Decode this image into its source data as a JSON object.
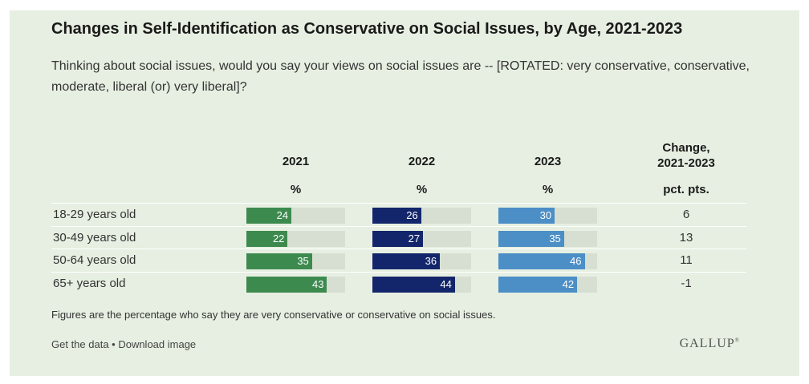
{
  "chart_data": {
    "type": "bar",
    "title": "Changes in Self-Identification as Conservative on Social Issues, by Age, 2021-2023",
    "subtitle": "Thinking about social issues, would you say your views on social issues are -- [ROTATED: very conservative, conservative, moderate, liberal (or) very liberal]?",
    "columns": [
      {
        "year": "2021",
        "unit": "%",
        "color": "#3d8a4f"
      },
      {
        "year": "2022",
        "unit": "%",
        "color": "#13266b"
      },
      {
        "year": "2023",
        "unit": "%",
        "color": "#4c8ec6"
      }
    ],
    "change_header": "Change,\n2021-2023",
    "change_unit": "pct. pts.",
    "categories": [
      "18-29 years old",
      "30-49 years old",
      "50-64 years old",
      "65+ years old"
    ],
    "series": [
      {
        "name": "2021",
        "values": [
          24,
          22,
          35,
          43
        ]
      },
      {
        "name": "2022",
        "values": [
          26,
          27,
          36,
          44
        ]
      },
      {
        "name": "2023",
        "values": [
          30,
          35,
          46,
          42
        ]
      }
    ],
    "change": [
      "6",
      "13",
      "11",
      "-1"
    ],
    "ylim": [
      0,
      100
    ],
    "note": "Figures are the percentage who say they are very conservative or conservative on social issues.",
    "links": "Get the data • Download image",
    "logo": "GALLUP"
  }
}
